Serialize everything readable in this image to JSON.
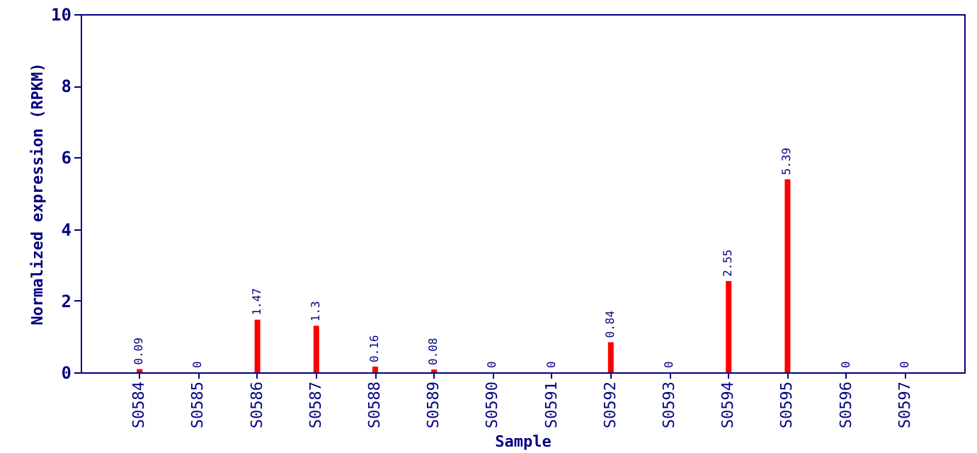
{
  "chart_data": {
    "type": "bar",
    "xlabel": "Sample",
    "ylabel": "Normalized expression (RPKM)",
    "categories": [
      "S0584",
      "S0585",
      "S0586",
      "S0587",
      "S0588",
      "S0589",
      "S0590",
      "S0591",
      "S0592",
      "S0593",
      "S0594",
      "S0595",
      "S0596",
      "S0597"
    ],
    "values": [
      0.09,
      0,
      1.47,
      1.3,
      0.16,
      0.08,
      0,
      0,
      0.84,
      0,
      2.55,
      5.39,
      0,
      0
    ],
    "color": "#ff0000",
    "ylim": [
      0,
      10
    ],
    "yticks": [
      0,
      2,
      4,
      6,
      8,
      10
    ],
    "grid": false,
    "data_labels": true
  }
}
